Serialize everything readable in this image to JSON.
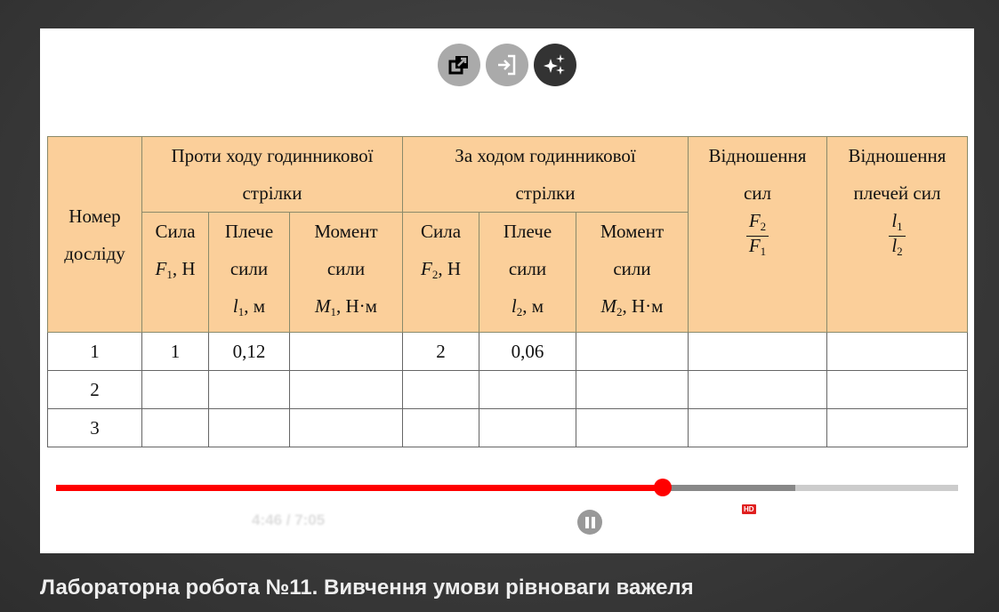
{
  "toolbar": {
    "buttons": [
      {
        "icon": "external-link-icon"
      },
      {
        "icon": "sign-in-icon"
      },
      {
        "icon": "sparkles-icon"
      }
    ]
  },
  "table": {
    "number_header": "Номер досліду",
    "ccw_header": "Проти ходу годинникової стрілки",
    "cw_header": "За ходом годинникової стрілки",
    "force_ratio_header": "Відношення сил",
    "arm_ratio_header": "Відношення плечей сил",
    "force_label": "Сила",
    "arm_label": "Плече сили",
    "moment_label": "Момент сили",
    "F": "F",
    "l": "l",
    "M": "M",
    "s1": "1",
    "s2": "2",
    "unit_N": ", Н",
    "unit_m": ", м",
    "unit_Nm": ", Н·м",
    "rows": [
      [
        "1",
        "1",
        "0,12",
        "",
        "2",
        "0,06",
        "",
        "",
        ""
      ],
      [
        "2",
        "",
        "",
        "",
        "",
        "",
        "",
        "",
        ""
      ],
      [
        "3",
        "",
        "",
        "",
        "",
        "",
        "",
        "",
        ""
      ]
    ]
  },
  "player": {
    "time": "4:46 / 7:05",
    "progress": 0.673,
    "buffered": 0.82,
    "hd": "HD",
    "colors": {
      "played": "#ff0000",
      "buffered": "#888888",
      "track": "#cccccc"
    }
  },
  "video_title": "Лабораторна робота №11. Вивчення умови рівноваги важеля"
}
